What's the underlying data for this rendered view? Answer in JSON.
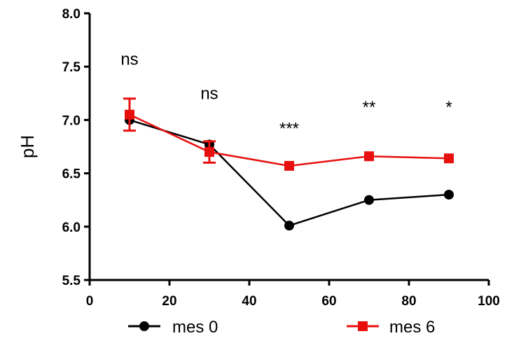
{
  "chart_data": {
    "type": "line",
    "title": "",
    "xlabel": "",
    "ylabel": "pH",
    "xlim": [
      0,
      100
    ],
    "ylim": [
      5.5,
      8.0
    ],
    "x_ticks": [
      "0",
      "20",
      "40",
      "60",
      "80",
      "100"
    ],
    "y_ticks": [
      "5.5",
      "6.0",
      "6.5",
      "7.0",
      "7.5",
      "8.0"
    ],
    "grid": false,
    "legend_position": "bottom",
    "series": [
      {
        "name": "mes 0",
        "color": "#000000",
        "marker": "circle",
        "x": [
          10,
          30,
          50,
          70,
          90
        ],
        "y": [
          7.0,
          6.77,
          6.01,
          6.25,
          6.3
        ],
        "error": [
          0,
          0,
          0,
          0,
          0
        ]
      },
      {
        "name": "mes 6",
        "color": "#e8100f",
        "marker": "square",
        "x": [
          10,
          30,
          50,
          70,
          90
        ],
        "y": [
          7.05,
          6.7,
          6.57,
          6.66,
          6.64
        ],
        "error": [
          0.15,
          0.1,
          0,
          0,
          0
        ]
      }
    ],
    "annotations": [
      {
        "text": "ns",
        "x": 10,
        "y": 7.57
      },
      {
        "text": "ns",
        "x": 30,
        "y": 7.25
      },
      {
        "text": "***",
        "x": 50,
        "y": 6.92
      },
      {
        "text": "**",
        "x": 70,
        "y": 7.12
      },
      {
        "text": "*",
        "x": 90,
        "y": 7.12
      }
    ]
  }
}
